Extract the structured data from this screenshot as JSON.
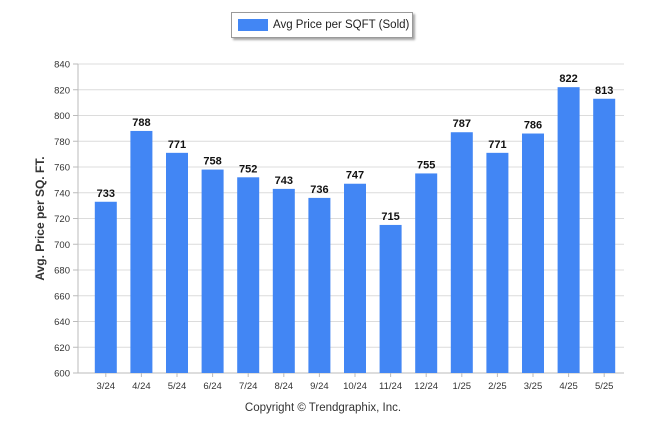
{
  "chart_data": {
    "type": "bar",
    "ylabel": "Avg. Price per SQ. FT.",
    "xlabel": "",
    "categories": [
      "3/24",
      "4/24",
      "5/24",
      "6/24",
      "7/24",
      "8/24",
      "9/24",
      "10/24",
      "11/24",
      "12/24",
      "1/25",
      "2/25",
      "3/25",
      "4/25",
      "5/25"
    ],
    "series": [
      {
        "name": "Avg Price per SQFT (Sold)",
        "values": [
          733,
          788,
          771,
          758,
          752,
          743,
          736,
          747,
          715,
          755,
          787,
          771,
          786,
          822,
          813
        ],
        "color": "#4286f4"
      }
    ],
    "ylim": [
      600,
      840
    ],
    "yticks": [
      600,
      620,
      640,
      660,
      680,
      700,
      720,
      740,
      760,
      780,
      800,
      820,
      840
    ],
    "grid": true,
    "legend_position": "top-center",
    "data_labels": true
  },
  "footer": {
    "copyright": "Copyright © Trendgraphix, Inc."
  }
}
